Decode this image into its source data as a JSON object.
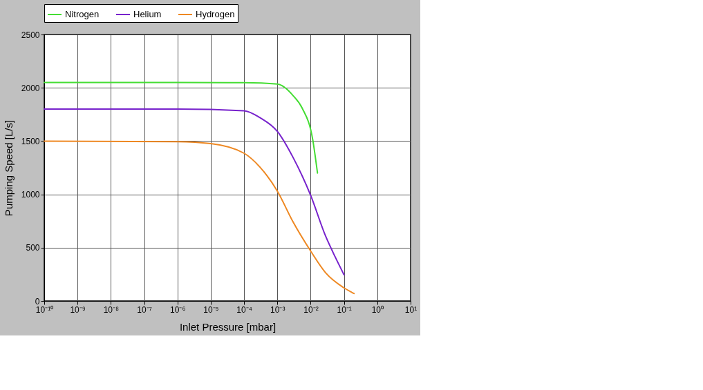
{
  "chart_data": {
    "type": "line",
    "xlabel": "Inlet Pressure [mbar]",
    "ylabel": "Pumping Speed [L/s]",
    "log": "x",
    "xlim": [
      1e-10,
      10
    ],
    "xticks": [
      {
        "value": 1e-10,
        "label": "10⁻¹⁰"
      },
      {
        "value": 1e-09,
        "label": "10⁻⁹"
      },
      {
        "value": 1e-08,
        "label": "10⁻⁸"
      },
      {
        "value": 1e-07,
        "label": "10⁻⁷"
      },
      {
        "value": 1e-06,
        "label": "10⁻⁶"
      },
      {
        "value": 1e-05,
        "label": "10⁻⁵"
      },
      {
        "value": 0.0001,
        "label": "10⁻⁴"
      },
      {
        "value": 0.001,
        "label": "10⁻³"
      },
      {
        "value": 0.01,
        "label": "10⁻²"
      },
      {
        "value": 0.1,
        "label": "10⁻¹"
      },
      {
        "value": 1,
        "label": "10⁰"
      },
      {
        "value": 10,
        "label": "10¹"
      }
    ],
    "ylim": [
      0,
      2500
    ],
    "yticks": [
      0,
      500,
      1000,
      1500,
      2000,
      2500
    ],
    "grid": true,
    "legend": "top",
    "line_style": "solid",
    "marker": "none",
    "series": [
      {
        "name": "Nitrogen",
        "color": "#44dd33",
        "x": [
          1e-10,
          1e-06,
          0.0001,
          0.001,
          0.003,
          0.0056,
          0.0115,
          0.016
        ],
        "values": [
          2050,
          2050,
          2048,
          2035,
          1925,
          1807,
          1515,
          1200
        ]
      },
      {
        "name": "Helium",
        "color": "#7722cc",
        "x": [
          1e-10,
          1e-06,
          0.0001,
          0.0003,
          0.001,
          0.003,
          0.01,
          0.028,
          0.054,
          0.1
        ],
        "values": [
          1800,
          1800,
          1785,
          1720,
          1591,
          1343,
          990,
          609,
          415,
          246
        ]
      },
      {
        "name": "Hydrogen",
        "color": "#ee8822",
        "x": [
          1e-10,
          1e-06,
          1e-05,
          0.0001,
          0.0003,
          0.001,
          0.003,
          0.01,
          0.028,
          0.1,
          0.2
        ],
        "values": [
          1500,
          1495,
          1477,
          1386,
          1256,
          1030,
          738,
          468,
          265,
          123,
          70
        ]
      }
    ]
  }
}
